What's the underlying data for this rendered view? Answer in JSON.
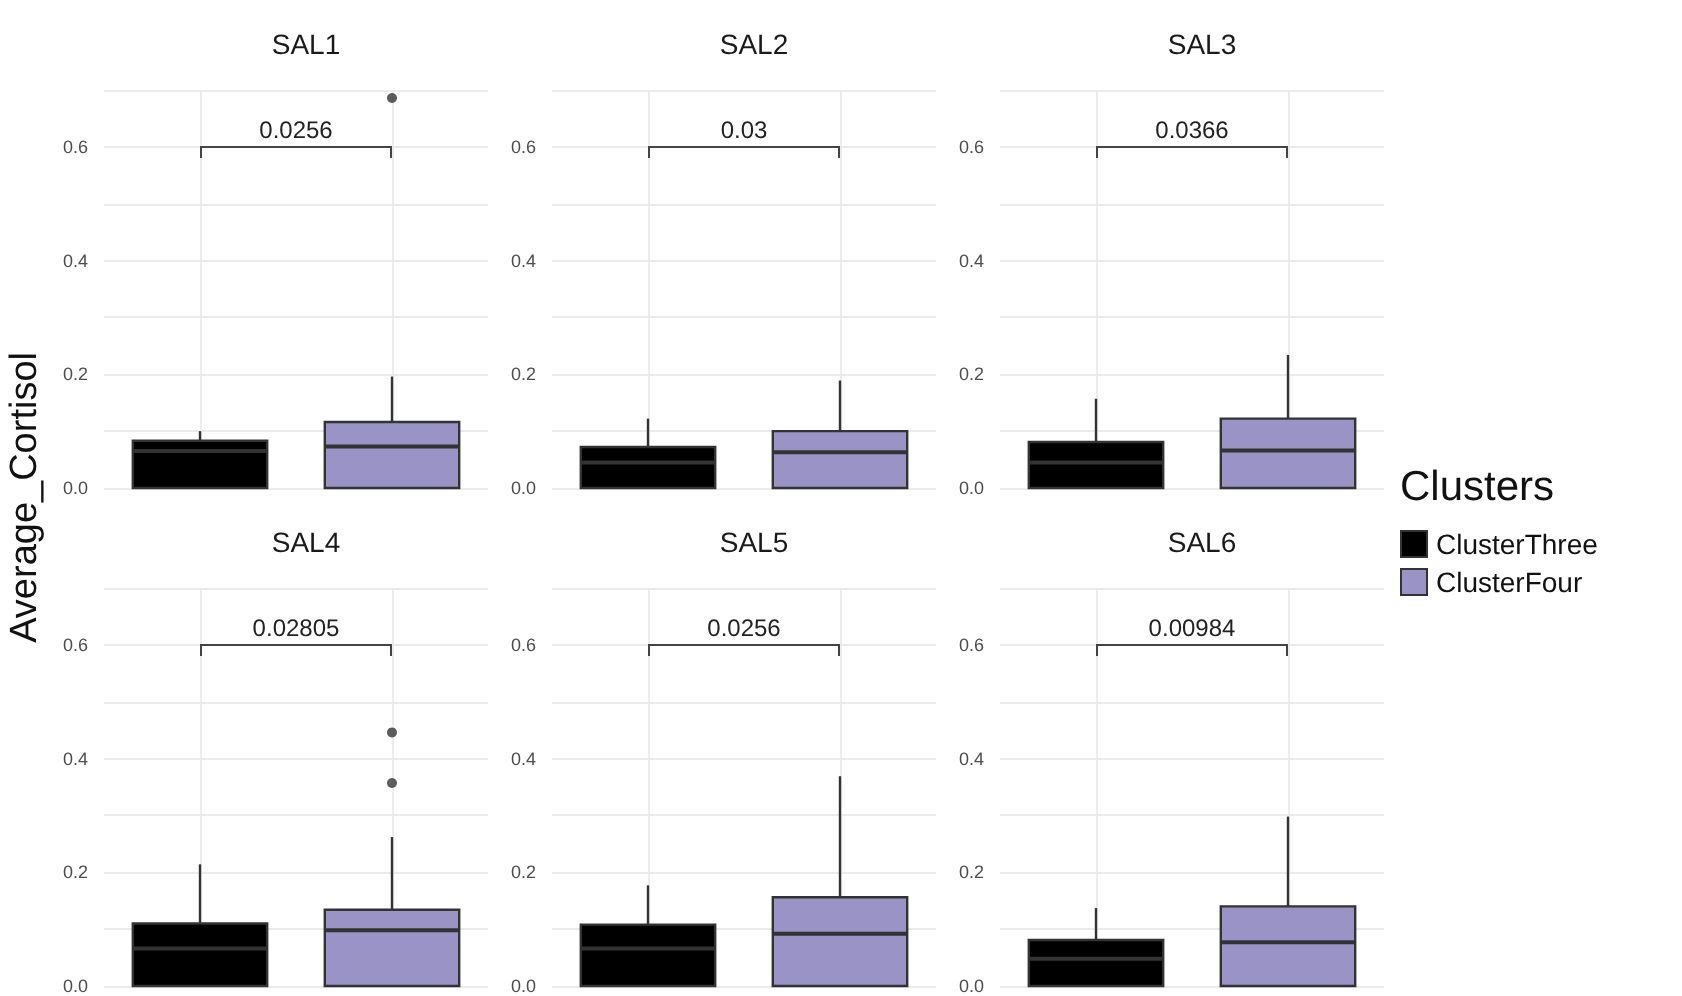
{
  "chart_data": [
    {
      "type": "box",
      "title": "SAL1",
      "ylabel": "Average_Cortisol",
      "categories": [
        null,
        null
      ],
      "series": [
        {
          "color": "#000000",
          "boxes": [
            {
              "low": 0,
              "q1": 0,
              "median": 0.065,
              "q3": 0.083,
              "high": 0.1
            },
            null
          ]
        },
        {
          "color": "#9a93c6",
          "boxes": [
            null,
            {
              "low": 0,
              "q1": 0,
              "median": 0.073,
              "q3": 0.116,
              "high": 0.196,
              "outliers": [
                0.686
              ]
            }
          ]
        }
      ],
      "ylim": [
        0,
        0.7
      ],
      "yticks": [
        {
          "value": 0,
          "label": "0.0"
        },
        {
          "value": 0.1,
          "label": null
        },
        0.2,
        {
          "value": 0.3,
          "label": null
        },
        0.4,
        {
          "value": 0.5,
          "label": null
        },
        0.6,
        {
          "value": 0.7,
          "label": null
        }
      ],
      "grid": true,
      "tick_labels": "y",
      "annotations": [
        "0.0256"
      ]
    },
    {
      "type": "box",
      "title": "SAL2",
      "categories": [
        null,
        null
      ],
      "series": [
        {
          "color": "#000000",
          "boxes": [
            {
              "low": 0,
              "q1": 0,
              "median": 0.045,
              "q3": 0.072,
              "high": 0.122
            },
            null
          ]
        },
        {
          "color": "#9a93c6",
          "boxes": [
            null,
            {
              "low": 0,
              "q1": 0,
              "median": 0.063,
              "q3": 0.1,
              "high": 0.189
            }
          ]
        }
      ],
      "ylim": [
        0,
        0.7
      ],
      "yticks": [
        {
          "value": 0,
          "label": "0.0"
        },
        {
          "value": 0.1,
          "label": null
        },
        0.2,
        {
          "value": 0.3,
          "label": null
        },
        0.4,
        {
          "value": 0.5,
          "label": null
        },
        0.6,
        {
          "value": 0.7,
          "label": null
        }
      ],
      "grid": true,
      "tick_labels": "y",
      "annotations": [
        "0.03"
      ]
    },
    {
      "type": "box",
      "title": "SAL3",
      "legend": "right",
      "legend_title": "Clusters",
      "categories": [
        null,
        null
      ],
      "series": [
        {
          "name": "ClusterThree",
          "color": "#000000",
          "boxes": [
            {
              "low": 0,
              "q1": 0,
              "median": 0.045,
              "q3": 0.081,
              "high": 0.157
            },
            null
          ]
        },
        {
          "name": "ClusterFour",
          "color": "#9a93c6",
          "boxes": [
            null,
            {
              "low": 0,
              "q1": 0,
              "median": 0.066,
              "q3": 0.122,
              "high": 0.234
            }
          ]
        }
      ],
      "ylim": [
        0,
        0.7
      ],
      "yticks": [
        {
          "value": 0,
          "label": "0.0"
        },
        {
          "value": 0.1,
          "label": null
        },
        0.2,
        {
          "value": 0.3,
          "label": null
        },
        0.4,
        {
          "value": 0.5,
          "label": null
        },
        0.6,
        {
          "value": 0.7,
          "label": null
        }
      ],
      "grid": true,
      "tick_labels": "y",
      "annotations": [
        "0.0366"
      ]
    },
    {
      "type": "box",
      "title": "SAL4",
      "categories": [
        null,
        null
      ],
      "series": [
        {
          "color": "#000000",
          "boxes": [
            {
              "low": 0,
              "q1": 0,
              "median": 0.066,
              "q3": 0.11,
              "high": 0.214
            },
            null
          ]
        },
        {
          "color": "#9a93c6",
          "boxes": [
            null,
            {
              "low": 0,
              "q1": 0,
              "median": 0.098,
              "q3": 0.134,
              "high": 0.262,
              "outliers": [
                0.357,
                0.446
              ]
            }
          ]
        }
      ],
      "ylim": [
        0,
        0.7
      ],
      "yticks": [
        {
          "value": 0,
          "label": "0.0"
        },
        {
          "value": 0.1,
          "label": null
        },
        0.2,
        {
          "value": 0.3,
          "label": null
        },
        0.4,
        {
          "value": 0.5,
          "label": null
        },
        0.6,
        {
          "value": 0.7,
          "label": null
        }
      ],
      "grid": true,
      "tick_labels": "y",
      "annotations": [
        "0.02805"
      ]
    },
    {
      "type": "box",
      "title": "SAL5",
      "categories": [
        null,
        null
      ],
      "series": [
        {
          "color": "#000000",
          "boxes": [
            {
              "low": 0,
              "q1": 0,
              "median": 0.066,
              "q3": 0.108,
              "high": 0.177
            },
            null
          ]
        },
        {
          "color": "#9a93c6",
          "boxes": [
            null,
            {
              "low": 0,
              "q1": 0,
              "median": 0.092,
              "q3": 0.156,
              "high": 0.369
            }
          ]
        }
      ],
      "ylim": [
        0,
        0.7
      ],
      "yticks": [
        {
          "value": 0,
          "label": "0.0"
        },
        {
          "value": 0.1,
          "label": null
        },
        0.2,
        {
          "value": 0.3,
          "label": null
        },
        0.4,
        {
          "value": 0.5,
          "label": null
        },
        0.6,
        {
          "value": 0.7,
          "label": null
        }
      ],
      "grid": true,
      "tick_labels": "y",
      "annotations": [
        "0.0256"
      ]
    },
    {
      "type": "box",
      "title": "SAL6",
      "categories": [
        null,
        null
      ],
      "series": [
        {
          "color": "#000000",
          "boxes": [
            {
              "low": 0,
              "q1": 0,
              "median": 0.048,
              "q3": 0.081,
              "high": 0.137
            },
            null
          ]
        },
        {
          "color": "#9a93c6",
          "boxes": [
            null,
            {
              "low": 0,
              "q1": 0,
              "median": 0.077,
              "q3": 0.14,
              "high": 0.298
            }
          ]
        }
      ],
      "ylim": [
        0,
        0.7
      ],
      "yticks": [
        {
          "value": 0,
          "label": "0.0"
        },
        {
          "value": 0.1,
          "label": null
        },
        0.2,
        {
          "value": 0.3,
          "label": null
        },
        0.4,
        {
          "value": 0.5,
          "label": null
        },
        0.6,
        {
          "value": 0.7,
          "label": null
        }
      ],
      "grid": true,
      "tick_labels": "y",
      "annotations": [
        "0.00984"
      ]
    }
  ]
}
